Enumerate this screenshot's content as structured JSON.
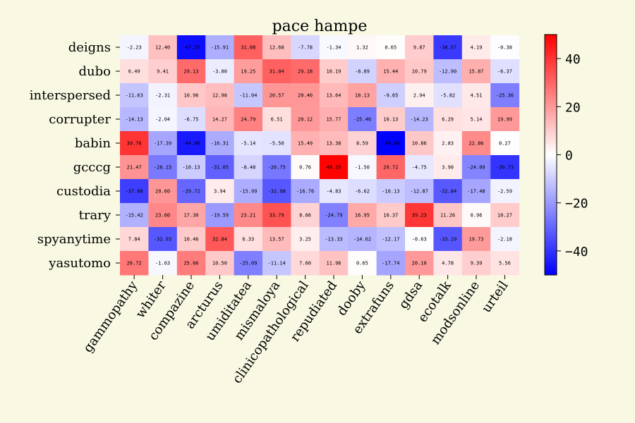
{
  "chart_data": {
    "type": "heatmap",
    "title": "pace hampe",
    "xlabel": "",
    "ylabel": "",
    "columns": [
      "gammopathy",
      "whiter",
      "compazine",
      "arcturus",
      "umiditatea",
      "mismaloya",
      "clinicopathological",
      "repudiated",
      "dooby",
      "extrafuns",
      "gdsa",
      "ecotalk",
      "modsonline",
      "urteil"
    ],
    "rows": [
      "deigns",
      "dubo",
      "interspersed",
      "corrupter",
      "babin",
      "gcccg",
      "custodia",
      "trary",
      "spyanytime",
      "yasutomo"
    ],
    "values": [
      [
        -2.23,
        12.4,
        -47.25,
        -15.91,
        31.08,
        12.68,
        -7.78,
        -1.34,
        1.32,
        0.65,
        9.87,
        -38.57,
        4.19,
        -0.38
      ],
      [
        6.49,
        9.41,
        29.13,
        -3.8,
        19.25,
        31.04,
        29.18,
        10.19,
        -8.89,
        15.44,
        10.79,
        -12.9,
        15.87,
        -6.37
      ],
      [
        -11.63,
        -2.31,
        10.96,
        12.98,
        -11.04,
        20.57,
        20.4,
        13.64,
        18.13,
        -9.65,
        2.94,
        -5.82,
        4.51,
        -25.36
      ],
      [
        -14.13,
        -2.04,
        -6.75,
        14.27,
        24.79,
        6.51,
        20.12,
        15.77,
        -25.46,
        10.13,
        -14.23,
        6.29,
        5.14,
        19.99
      ],
      [
        39.76,
        -17.39,
        -44.96,
        -16.31,
        -5.14,
        -5.5,
        15.49,
        13.38,
        8.59,
        -49.89,
        10.86,
        2.83,
        22.86,
        0.27
      ],
      [
        21.47,
        -26.15,
        -10.13,
        -31.05,
        -8.48,
        -26.75,
        0.76,
        49.35,
        -1.5,
        29.72,
        -4.75,
        3.9,
        -24.09,
        -39.73
      ],
      [
        -37.88,
        20.6,
        -29.72,
        3.94,
        -15.99,
        -32.98,
        -16.76,
        -4.83,
        -6.62,
        -10.13,
        -12.87,
        -32.84,
        -17.48,
        -2.59
      ],
      [
        -15.42,
        23.6,
        17.3,
        -19.59,
        23.21,
        33.79,
        8.66,
        -24.79,
        16.95,
        10.37,
        39.23,
        11.26,
        0.96,
        10.27
      ],
      [
        7.84,
        -32.93,
        10.46,
        32.84,
        6.33,
        13.57,
        3.25,
        -13.33,
        -14.62,
        -12.17,
        -0.63,
        -33.19,
        19.73,
        -2.18
      ],
      [
        26.72,
        -1.63,
        25.66,
        10.5,
        -25.09,
        -11.14,
        7.6,
        11.96,
        0.65,
        -17.74,
        20.1,
        4.78,
        9.39,
        5.56
      ]
    ],
    "value_format": "2 decimals",
    "colormap": "bwr",
    "colors": {
      "low": "#0000ff",
      "mid": "#ffffff",
      "high": "#ff0000"
    },
    "vmin": -50,
    "vmax": 50,
    "colorbar_ticks": [
      40,
      20,
      0,
      -20,
      -40
    ],
    "colorbar_tick_labels": [
      "40",
      "20",
      "0",
      "−20",
      "−40"
    ],
    "grid": false,
    "legend": "colorbar-right"
  }
}
